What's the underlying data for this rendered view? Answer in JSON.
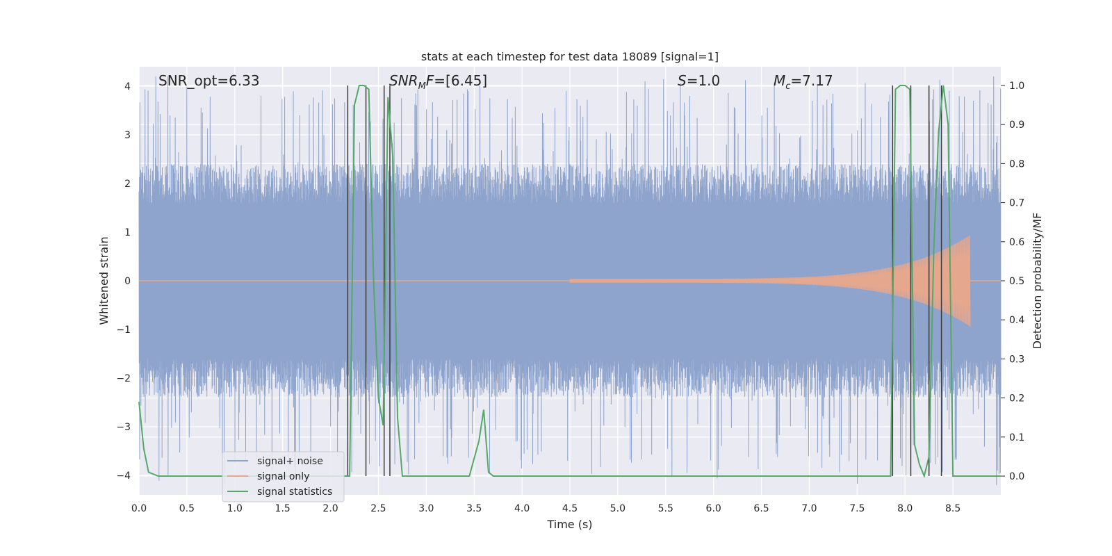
{
  "chart_data": {
    "type": "line",
    "title": "stats at each timestep for test data 18089 [signal=1]",
    "xlabel": "Time (s)",
    "ylabel": "Whitened strain",
    "ylabel_right": "Detection probability/MF",
    "xlim": [
      0.0,
      9.0
    ],
    "ylim": [
      -4.4,
      4.4
    ],
    "ylim_right": [
      -0.048,
      1.048
    ],
    "x_ticks": [
      0.0,
      0.5,
      1.0,
      1.5,
      2.0,
      2.5,
      3.0,
      3.5,
      4.0,
      4.5,
      5.0,
      5.5,
      6.0,
      6.5,
      7.0,
      7.5,
      8.0,
      8.5
    ],
    "x_tick_labels": [
      "0.0",
      "0.5",
      "1.0",
      "1.5",
      "2.0",
      "2.5",
      "3.0",
      "3.5",
      "4.0",
      "4.5",
      "5.0",
      "5.5",
      "6.0",
      "6.5",
      "7.0",
      "7.5",
      "8.0",
      "8.5"
    ],
    "y_ticks": [
      4,
      3,
      2,
      1,
      0,
      -1,
      -2,
      -3,
      -4
    ],
    "y_tick_labels": [
      "4",
      "3",
      "2",
      "1",
      "0",
      "−1",
      "−2",
      "−3",
      "−4"
    ],
    "y_ticks_right": [
      1.0,
      0.9,
      0.8,
      0.7,
      0.6,
      0.5,
      0.4,
      0.3,
      0.2,
      0.1,
      0.0
    ],
    "y_tick_labels_right": [
      "1.0",
      "0.9",
      "0.8",
      "0.7",
      "0.6",
      "0.5",
      "0.4",
      "0.3",
      "0.2",
      "0.1",
      "0.0"
    ],
    "grid": true,
    "legend_position": "lower-left",
    "annotations": [
      {
        "text": "SNR_opt=6.33",
        "x": 0.2
      },
      {
        "text": "SNR_MF=[6.45]",
        "x": 2.6
      },
      {
        "text": "S=1.0",
        "x": 5.6
      },
      {
        "text": "M_c=7.17",
        "x": 6.6
      }
    ],
    "series": [
      {
        "name": "signal+ noise",
        "axis": "left",
        "color": "#8fa4cc",
        "kind": "noisy-strain",
        "typical_amplitude": 1.6,
        "peak_amplitude": 4.0
      },
      {
        "name": "signal only",
        "axis": "left",
        "color": "#e5a78d",
        "kind": "chirp",
        "start": 4.5,
        "end": 8.68,
        "max_amplitude": 0.9
      },
      {
        "name": "signal statistics",
        "axis": "right",
        "color": "#55a868",
        "x": [
          0.0,
          0.05,
          0.1,
          0.2,
          0.5,
          1.0,
          1.5,
          2.0,
          2.15,
          2.2,
          2.25,
          2.3,
          2.35,
          2.4,
          2.45,
          2.5,
          2.55,
          2.6,
          2.65,
          2.7,
          2.75,
          2.8,
          3.0,
          3.3,
          3.45,
          3.55,
          3.6,
          3.65,
          3.7,
          4.0,
          5.0,
          6.0,
          7.0,
          7.5,
          7.85,
          7.9,
          7.95,
          8.0,
          8.05,
          8.1,
          8.15,
          8.2,
          8.25,
          8.3,
          8.35,
          8.4,
          8.45,
          8.5,
          8.9,
          9.0
        ],
        "y": [
          0.19,
          0.07,
          0.01,
          0.0,
          0.0,
          0.0,
          0.0,
          0.0,
          0.0,
          0.0,
          0.95,
          1.0,
          1.0,
          0.99,
          0.5,
          0.2,
          0.13,
          0.97,
          0.82,
          0.15,
          0.0,
          0.0,
          0.0,
          0.0,
          0.0,
          0.09,
          0.17,
          0.01,
          0.0,
          0.0,
          0.0,
          0.0,
          0.0,
          0.0,
          0.0,
          0.99,
          1.0,
          1.0,
          0.99,
          0.08,
          0.03,
          0.0,
          0.05,
          0.58,
          0.88,
          1.0,
          0.9,
          0.0,
          0.0,
          0.0
        ]
      }
    ],
    "vertical_markers": [
      2.18,
      2.37,
      2.56,
      2.62,
      7.87,
      8.06,
      8.25,
      8.38
    ]
  },
  "colors": {
    "plot_background": "#eaeaf2",
    "grid": "#ffffff",
    "marker_line": "#3a3a3a"
  }
}
